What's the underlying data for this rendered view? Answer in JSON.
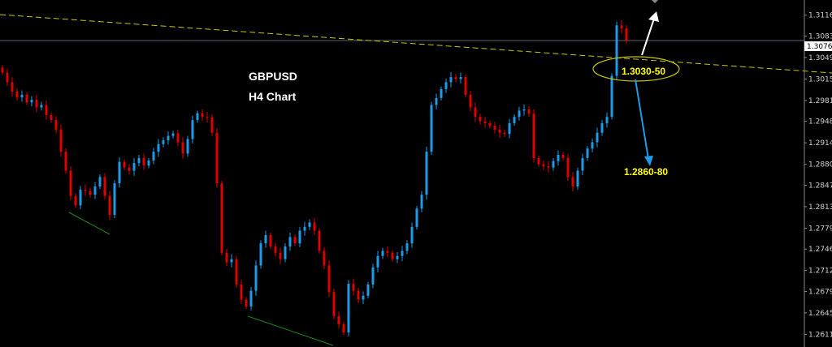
{
  "chart_data": {
    "type": "candlestick",
    "title": "GBPUSD",
    "subtitle": "H4 Chart",
    "ylim": [
      1.2591,
      1.314
    ],
    "y_ticks": [
      "1.31160",
      "1.30830",
      "1.30490",
      "1.30150",
      "1.29810",
      "1.29480",
      "1.29140",
      "1.28800",
      "1.28470",
      "1.28130",
      "1.27790",
      "1.27460",
      "1.27120",
      "1.26790",
      "1.26450",
      "1.26110"
    ],
    "current_price": "1.30761",
    "grid": false,
    "colors": {
      "up": "#1e9be8",
      "down": "#e00000",
      "background": "#000000",
      "trendline": "#c8c800",
      "annotation": "#ffff00",
      "up_arrow": "#ffffff",
      "down_arrow": "#1e9be8",
      "support_line": "#1a8a1a"
    },
    "closes": [
      1.3025,
      1.301,
      1.2995,
      1.2986,
      1.299,
      1.2978,
      1.2982,
      1.297,
      1.2974,
      1.2958,
      1.295,
      1.2935,
      1.29,
      1.287,
      1.283,
      1.2815,
      1.284,
      1.2838,
      1.2832,
      1.2845,
      1.286,
      1.283,
      1.28,
      1.285,
      1.2884,
      1.2875,
      1.287,
      1.2882,
      1.289,
      1.2878,
      1.2886,
      1.29,
      1.2912,
      1.2918,
      1.2925,
      1.2929,
      1.2915,
      1.2897,
      1.292,
      1.295,
      1.2961,
      1.2955,
      1.2954,
      1.293,
      1.285,
      1.274,
      1.2725,
      1.273,
      1.269,
      1.2666,
      1.2655,
      1.268,
      1.272,
      1.2755,
      1.2768,
      1.275,
      1.274,
      1.273,
      1.275,
      1.2765,
      1.2755,
      1.2775,
      1.2781,
      1.2788,
      1.2775,
      1.2743,
      1.272,
      1.2678,
      1.264,
      1.2627,
      1.2614,
      1.2691,
      1.268,
      1.2666,
      1.2672,
      1.269,
      1.2717,
      1.2735,
      1.2743,
      1.274,
      1.273,
      1.2735,
      1.2743,
      1.2755,
      1.2781,
      1.281,
      1.2832,
      1.29,
      1.2974,
      1.2985,
      1.2999,
      1.301,
      1.3018,
      1.3015,
      1.3018,
      1.299,
      1.297,
      1.2955,
      1.2948,
      1.2945,
      1.2941,
      1.2935,
      1.293,
      1.2928,
      1.2945,
      1.2955,
      1.2965,
      1.2967,
      1.296,
      1.289,
      1.288,
      1.2877,
      1.2875,
      1.2885,
      1.2895,
      1.289,
      1.286,
      1.2845,
      1.287,
      1.289,
      1.2905,
      1.2915,
      1.293,
      1.2945,
      1.2955,
      1.302,
      1.31,
      1.3095,
      1.3076
    ],
    "annotations": {
      "resistance_zone": "1.3030-50",
      "target": "1.2860-80"
    }
  }
}
